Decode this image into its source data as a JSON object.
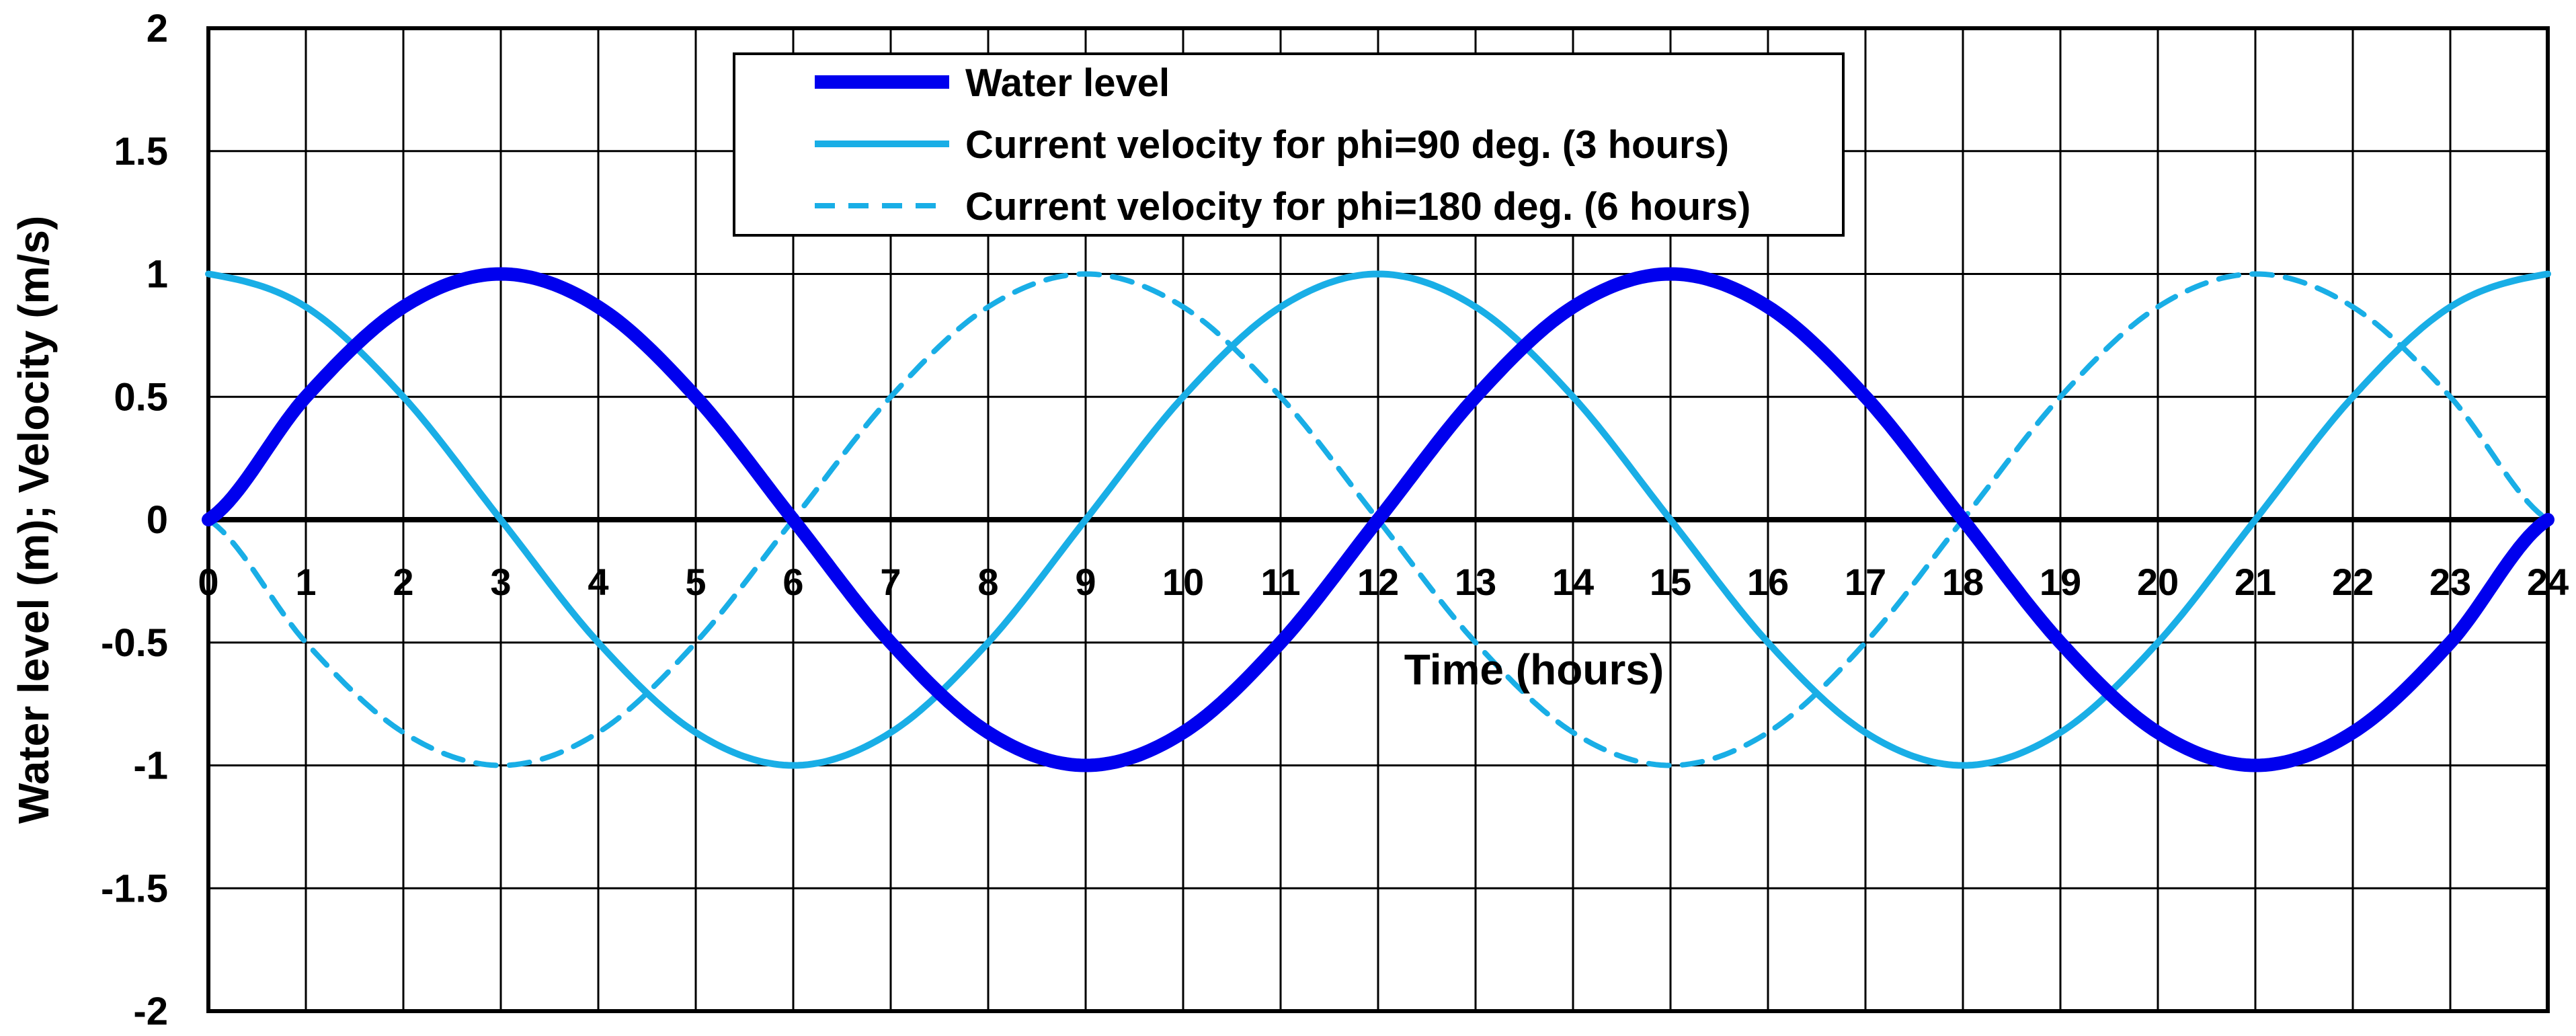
{
  "chart_data": {
    "type": "line",
    "title": "",
    "xlabel": "Time (hours)",
    "ylabel": "Water level (m); Velocity (m/s)",
    "xlim": [
      0,
      24
    ],
    "ylim": [
      -2,
      2
    ],
    "x_ticks": [
      0,
      1,
      2,
      3,
      4,
      5,
      6,
      7,
      8,
      9,
      10,
      11,
      12,
      13,
      14,
      15,
      16,
      17,
      18,
      19,
      20,
      21,
      22,
      23,
      24
    ],
    "y_ticks": [
      2,
      1.5,
      1,
      0.5,
      0,
      -0.5,
      -1,
      -1.5,
      -2
    ],
    "y_tick_labels": [
      "2",
      "1.5",
      "1",
      "0.5",
      "0",
      "-0.5",
      "-1",
      "-1.5",
      "-2"
    ],
    "x_tick_labels": [
      "0",
      "1",
      "2",
      "3",
      "4",
      "5",
      "6",
      "7",
      "8",
      "9",
      "10",
      "11",
      "12",
      "13",
      "14",
      "15",
      "16",
      "17",
      "18",
      "19",
      "20",
      "21",
      "22",
      "23",
      "24"
    ],
    "grid": true,
    "legend_position": "top-center",
    "series": [
      {
        "name": "Water level",
        "color": "#0000ee",
        "style": "solid-thick",
        "x": [
          0,
          1,
          2,
          3,
          4,
          5,
          6,
          7,
          8,
          9,
          10,
          11,
          12,
          13,
          14,
          15,
          16,
          17,
          18,
          19,
          20,
          21,
          22,
          23,
          24
        ],
        "values": [
          0,
          0.5,
          0.866,
          1,
          0.866,
          0.5,
          0,
          -0.5,
          -0.866,
          -1,
          -0.866,
          -0.5,
          0,
          0.5,
          0.866,
          1,
          0.866,
          0.5,
          0,
          -0.5,
          -0.866,
          -1,
          -0.866,
          -0.5,
          0
        ]
      },
      {
        "name": "Current velocity for phi=90 deg. (3 hours)",
        "color": "#19aee6",
        "style": "solid",
        "x": [
          0,
          1,
          2,
          3,
          4,
          5,
          6,
          7,
          8,
          9,
          10,
          11,
          12,
          13,
          14,
          15,
          16,
          17,
          18,
          19,
          20,
          21,
          22,
          23,
          24
        ],
        "values": [
          1,
          0.866,
          0.5,
          0,
          -0.5,
          -0.866,
          -1,
          -0.866,
          -0.5,
          0,
          0.5,
          0.866,
          1,
          0.866,
          0.5,
          0,
          -0.5,
          -0.866,
          -1,
          -0.866,
          -0.5,
          0,
          0.5,
          0.866,
          1
        ]
      },
      {
        "name": "Current velocity for phi=180 deg. (6 hours)",
        "color": "#19aee6",
        "style": "dashed",
        "x": [
          0,
          1,
          2,
          3,
          4,
          5,
          6,
          7,
          8,
          9,
          10,
          11,
          12,
          13,
          14,
          15,
          16,
          17,
          18,
          19,
          20,
          21,
          22,
          23,
          24
        ],
        "values": [
          0,
          -0.5,
          -0.866,
          -1,
          -0.866,
          -0.5,
          0,
          0.5,
          0.866,
          1,
          0.866,
          0.5,
          0,
          -0.5,
          -0.866,
          -1,
          -0.866,
          -0.5,
          0,
          0.5,
          0.866,
          1,
          0.866,
          0.5,
          0
        ]
      }
    ]
  }
}
